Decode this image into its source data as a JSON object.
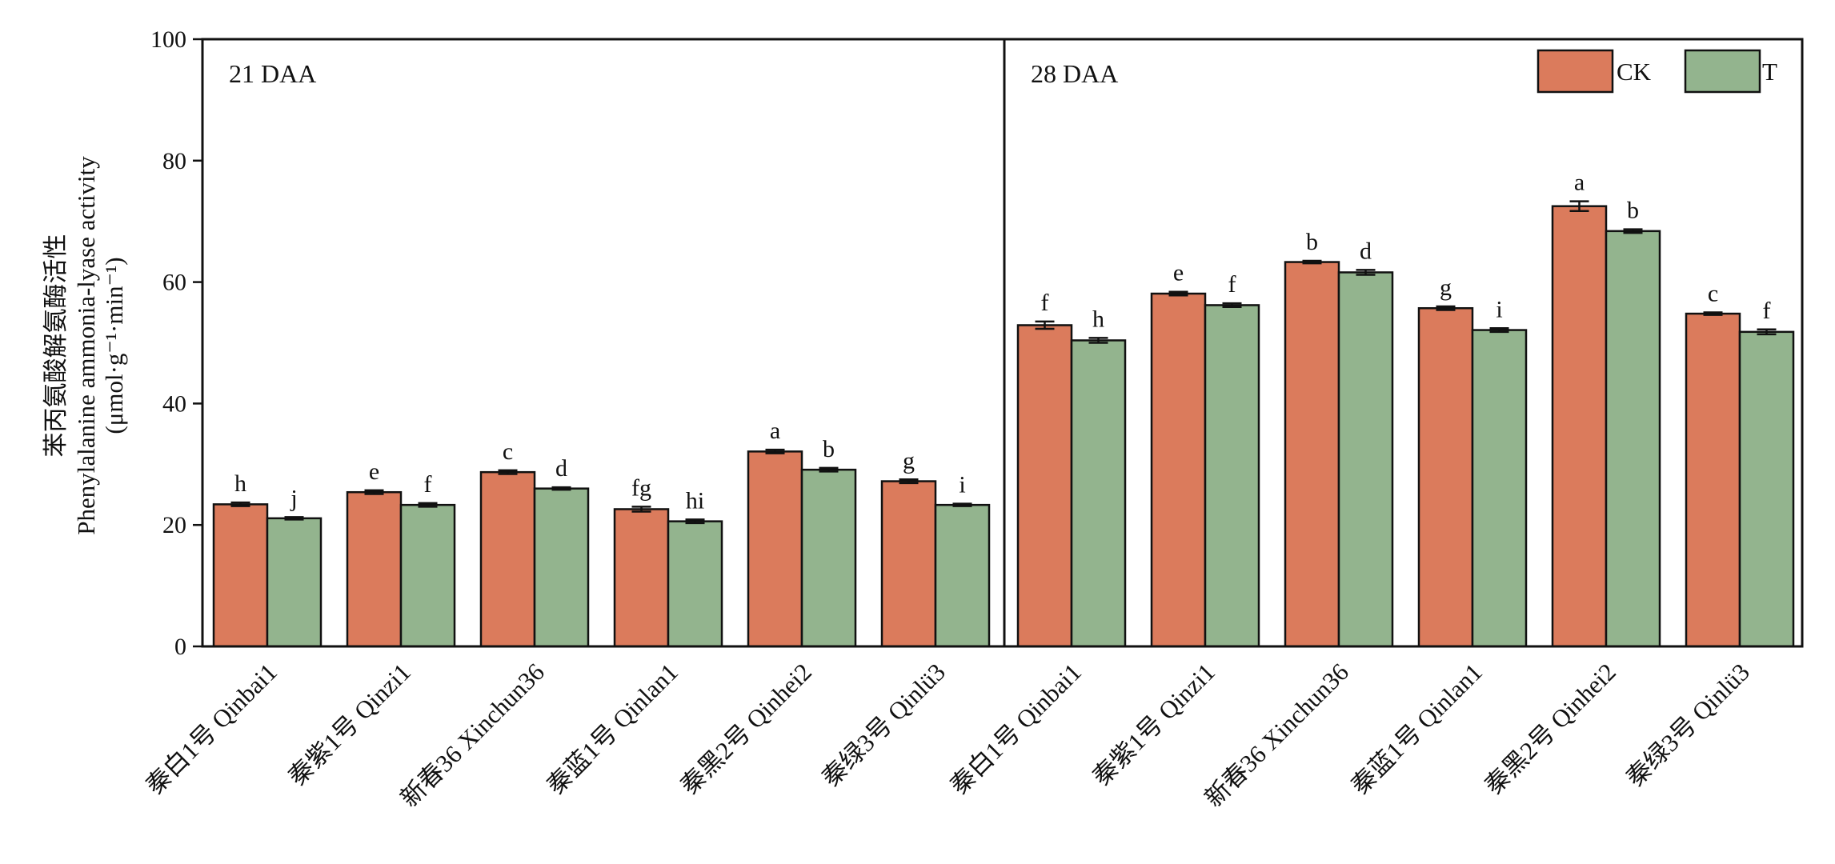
{
  "chart_data": {
    "type": "bar",
    "ylabel": [
      "苯丙氨酸解氨酶活性",
      "Phenylalanine ammonia-lyase activity",
      "(μmol·g⁻¹·min⁻¹)"
    ],
    "ylim": [
      0,
      100
    ],
    "yticks": [
      0,
      20,
      40,
      60,
      80,
      100
    ],
    "grid": false,
    "legend_position": "top-right",
    "legend": [
      {
        "name": "CK",
        "color": "#DB7B5C"
      },
      {
        "name": "T",
        "color": "#93B48E"
      }
    ],
    "panels": [
      {
        "label": "21 DAA",
        "categories": [
          "秦白1号 Qinbai1",
          "秦紫1号 Qinzi1",
          "新春36 Xinchun36",
          "秦蓝1号 Qinlan1",
          "秦黑2号 Qinhei2",
          "秦绿3号 Qinlü3"
        ],
        "series": [
          {
            "name": "CK",
            "values": [
              23.4,
              25.4,
              28.7,
              22.6,
              32.1,
              27.2
            ],
            "errors": [
              0.3,
              0.3,
              0.3,
              0.4,
              0.3,
              0.3
            ],
            "letters": [
              "h",
              "e",
              "c",
              "fg",
              "a",
              "g"
            ]
          },
          {
            "name": "T",
            "values": [
              21.1,
              23.3,
              26.0,
              20.6,
              29.1,
              23.3
            ],
            "errors": [
              0.2,
              0.3,
              0.2,
              0.3,
              0.3,
              0.2
            ],
            "letters": [
              "j",
              "f",
              "d",
              "hi",
              "b",
              "i"
            ]
          }
        ]
      },
      {
        "label": "28 DAA",
        "categories": [
          "秦白1号 Qinbai1",
          "秦紫1号 Qinzi1",
          "新春36 Xinchun36",
          "秦蓝1号 Qinlan1",
          "秦黑2号 Qinhei2",
          "秦绿3号 Qinlü3"
        ],
        "series": [
          {
            "name": "CK",
            "values": [
              52.9,
              58.1,
              63.3,
              55.7,
              72.5,
              54.8
            ],
            "errors": [
              0.6,
              0.3,
              0.2,
              0.3,
              0.8,
              0.2
            ],
            "letters": [
              "f",
              "e",
              "b",
              "g",
              "a",
              "c"
            ]
          },
          {
            "name": "T",
            "values": [
              50.4,
              56.2,
              61.6,
              52.1,
              68.4,
              51.8
            ],
            "errors": [
              0.4,
              0.3,
              0.4,
              0.3,
              0.3,
              0.4
            ],
            "letters": [
              "h",
              "f",
              "d",
              "i",
              "b",
              "f"
            ]
          }
        ]
      }
    ]
  }
}
